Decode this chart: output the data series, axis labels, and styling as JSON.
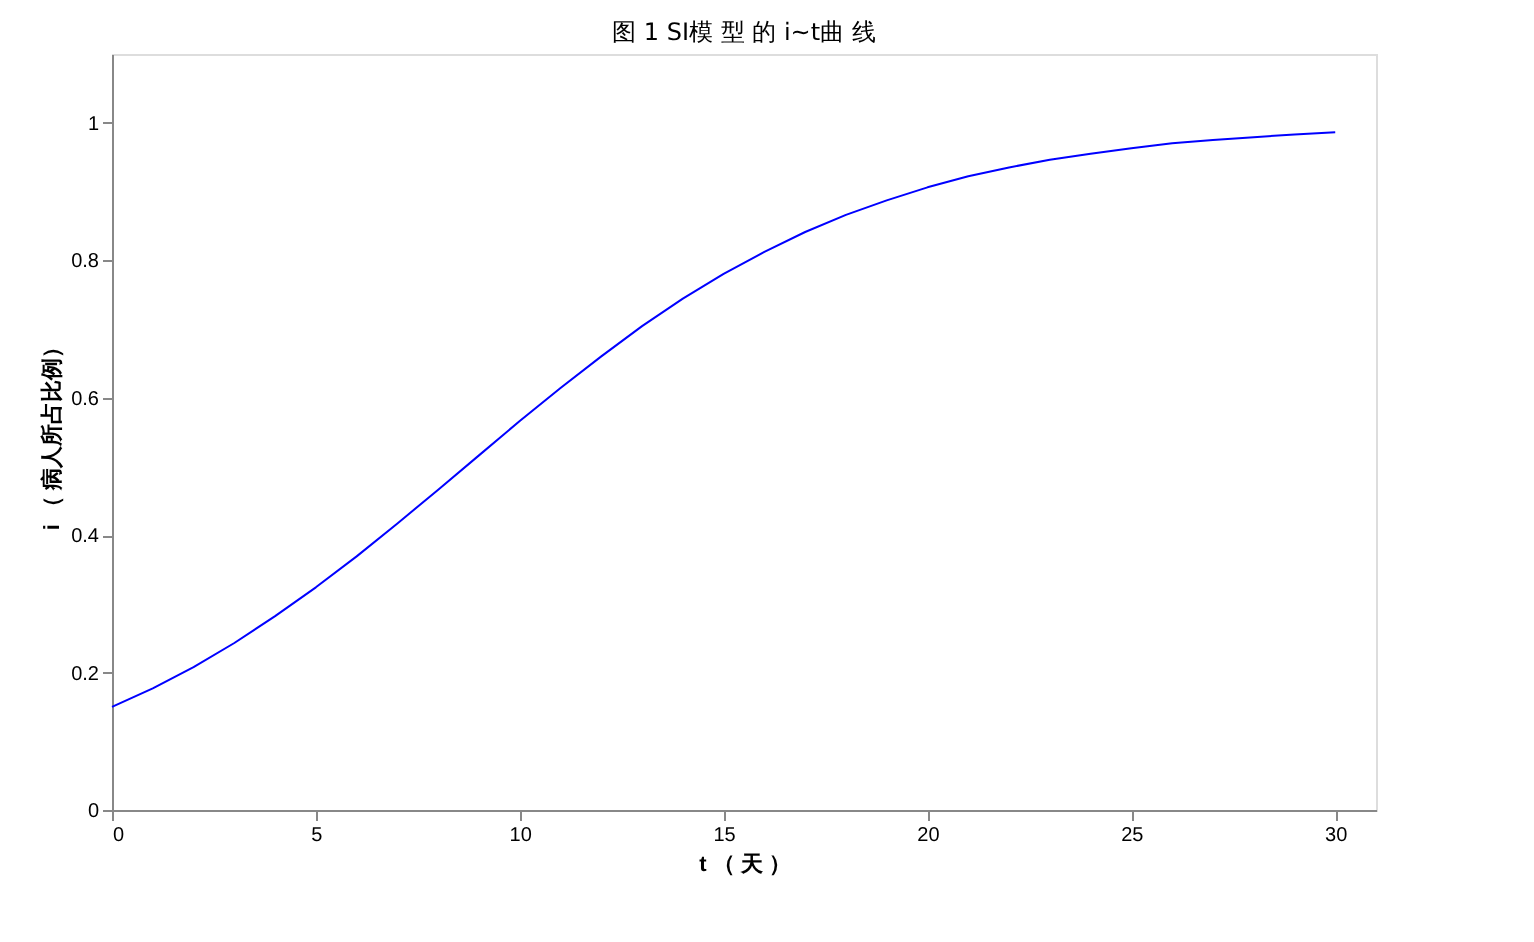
{
  "chart_data": {
    "type": "line",
    "title": "图 1  SI模 型 的 i~t曲 线",
    "xlabel": "t （ 天 ）",
    "ylabel": "i （ 病人所占比例）",
    "x": [
      0,
      1,
      2,
      3,
      4,
      5,
      6,
      7,
      8,
      9,
      10,
      11,
      12,
      13,
      14,
      15,
      16,
      17,
      18,
      19,
      20,
      21,
      22,
      23,
      24,
      25,
      26,
      27,
      28,
      29,
      30
    ],
    "series": [
      {
        "color": "#0000ff",
        "values": [
          0.15,
          0.177,
          0.208,
          0.243,
          0.282,
          0.324,
          0.369,
          0.417,
          0.466,
          0.516,
          0.566,
          0.614,
          0.66,
          0.704,
          0.744,
          0.78,
          0.812,
          0.841,
          0.866,
          0.887,
          0.906,
          0.922,
          0.935,
          0.946,
          0.955,
          0.963,
          0.97,
          0.975,
          0.979,
          0.983,
          0.986
        ]
      }
    ],
    "xlim": [
      0,
      31
    ],
    "ylim": [
      0,
      1.1
    ],
    "xticks": [
      0,
      5,
      10,
      15,
      20,
      25,
      30
    ],
    "yticks": [
      0,
      0.2,
      0.4,
      0.6,
      0.8,
      1
    ],
    "grid": false,
    "marker": "none",
    "line_style": "solid"
  }
}
